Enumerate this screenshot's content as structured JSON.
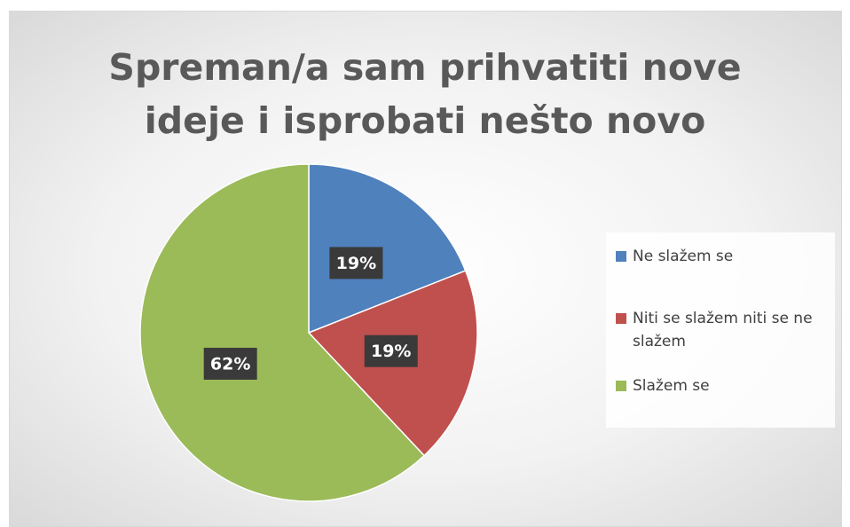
{
  "chart_data": {
    "type": "pie",
    "title": "Spreman/a sam prihvatiti nove ideje i isprobati nešto novo",
    "categories": [
      "Ne slažem se",
      "Niti se slažem niti se ne slažem",
      "Slažem se"
    ],
    "values": [
      19,
      19,
      62
    ],
    "value_labels": [
      "19%",
      "19%",
      "62%"
    ],
    "colors": [
      "#4f81bd",
      "#c0504d",
      "#9bbb59"
    ],
    "legend": "right"
  }
}
